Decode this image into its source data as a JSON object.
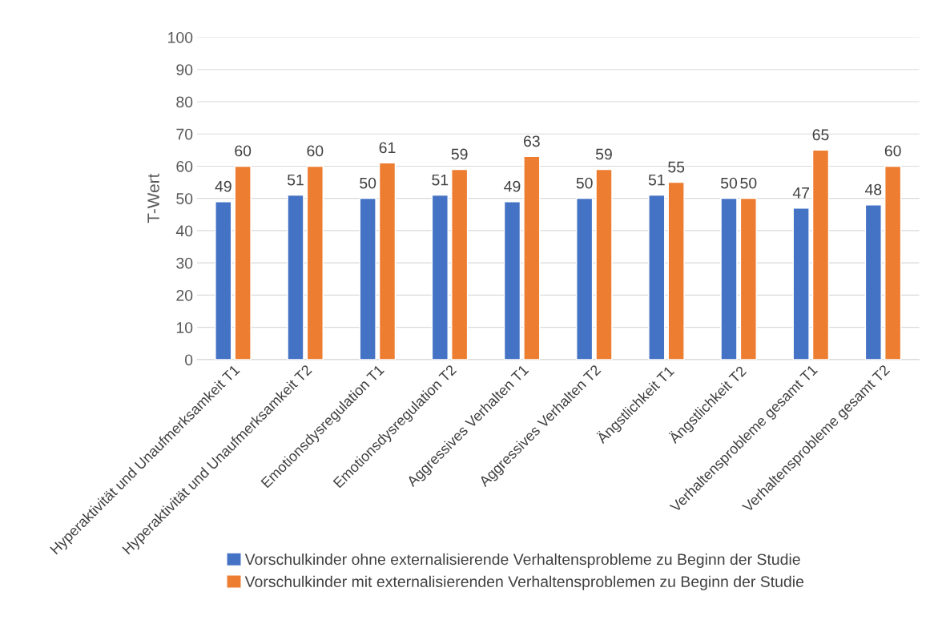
{
  "chart_data": {
    "type": "bar",
    "ylabel": "T-Wert",
    "categories": [
      "Hyperaktivität und Unaufmerksamkeit T1",
      "Hyperaktivität und Unaufmerksamkeit T2",
      "Emotionsdysregulation T1",
      "Emotionsdysregulation T2",
      "Aggressives Verhalten T1",
      "Aggressives Verhalten T2",
      "Ängstlichkeit T1",
      "Ängstlichkeit T2",
      "Verhaltensprobleme gesamt T1",
      "Verhaltensprobleme gesamt T2"
    ],
    "series": [
      {
        "name": "Vorschulkinder ohne externalisierende Verhaltensprobleme zu Beginn der Studie",
        "color": "#4472c4",
        "values": [
          49,
          51,
          50,
          51,
          49,
          50,
          51,
          50,
          47,
          48
        ]
      },
      {
        "name": "Vorschulkinder mit externalisierenden Verhaltensproblemen zu Beginn der Studie",
        "color": "#ed7d31",
        "values": [
          60,
          60,
          61,
          59,
          63,
          59,
          55,
          50,
          65,
          60
        ]
      }
    ],
    "ylim": [
      0,
      100
    ],
    "yticks": [
      0,
      10,
      20,
      30,
      40,
      50,
      60,
      70,
      80,
      90,
      100
    ],
    "grid": "y",
    "legend": "bottom",
    "data_labels": true
  }
}
